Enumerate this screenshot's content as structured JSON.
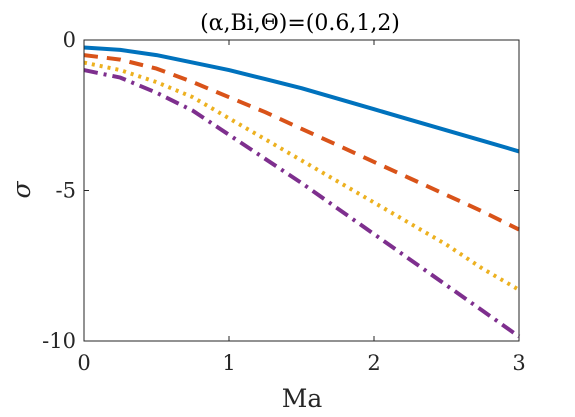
{
  "chart_data": {
    "type": "line",
    "title": "(α,Bi,Θ)=(0.6,1,2)",
    "xlabel": "Ma",
    "ylabel": "σ",
    "xlim": [
      0,
      3
    ],
    "ylim": [
      -10,
      0
    ],
    "xticks": [
      0,
      1,
      2,
      3
    ],
    "xtick_labels": [
      "0",
      "1",
      "2",
      "3"
    ],
    "yticks": [
      0,
      -5,
      -10
    ],
    "ytick_labels": [
      "0",
      "-5",
      "-10"
    ],
    "grid": false,
    "legend": "none",
    "x": [
      0,
      0.25,
      0.5,
      0.75,
      1,
      1.25,
      1.5,
      1.75,
      2,
      2.25,
      2.5,
      2.75,
      3
    ],
    "series": [
      {
        "color": "#0072BD",
        "style": "solid",
        "values": [
          -0.25,
          -0.33,
          -0.5,
          -0.75,
          -1.0,
          -1.3,
          -1.6,
          -1.95,
          -2.3,
          -2.65,
          -3.0,
          -3.35,
          -3.7
        ]
      },
      {
        "color": "#D95319",
        "style": "dashed",
        "values": [
          -0.5,
          -0.65,
          -0.95,
          -1.4,
          -1.9,
          -2.4,
          -2.95,
          -3.5,
          -4.05,
          -4.6,
          -5.15,
          -5.7,
          -6.3
        ]
      },
      {
        "color": "#EDB120",
        "style": "dotted",
        "values": [
          -0.75,
          -1.0,
          -1.4,
          -1.9,
          -2.6,
          -3.3,
          -4.0,
          -4.7,
          -5.4,
          -6.1,
          -6.8,
          -7.6,
          -8.3
        ]
      },
      {
        "color": "#7E2F8E",
        "style": "dashdot",
        "values": [
          -1.0,
          -1.25,
          -1.75,
          -2.35,
          -3.15,
          -3.95,
          -4.75,
          -5.6,
          -6.45,
          -7.3,
          -8.15,
          -9.0,
          -9.85
        ]
      }
    ]
  }
}
